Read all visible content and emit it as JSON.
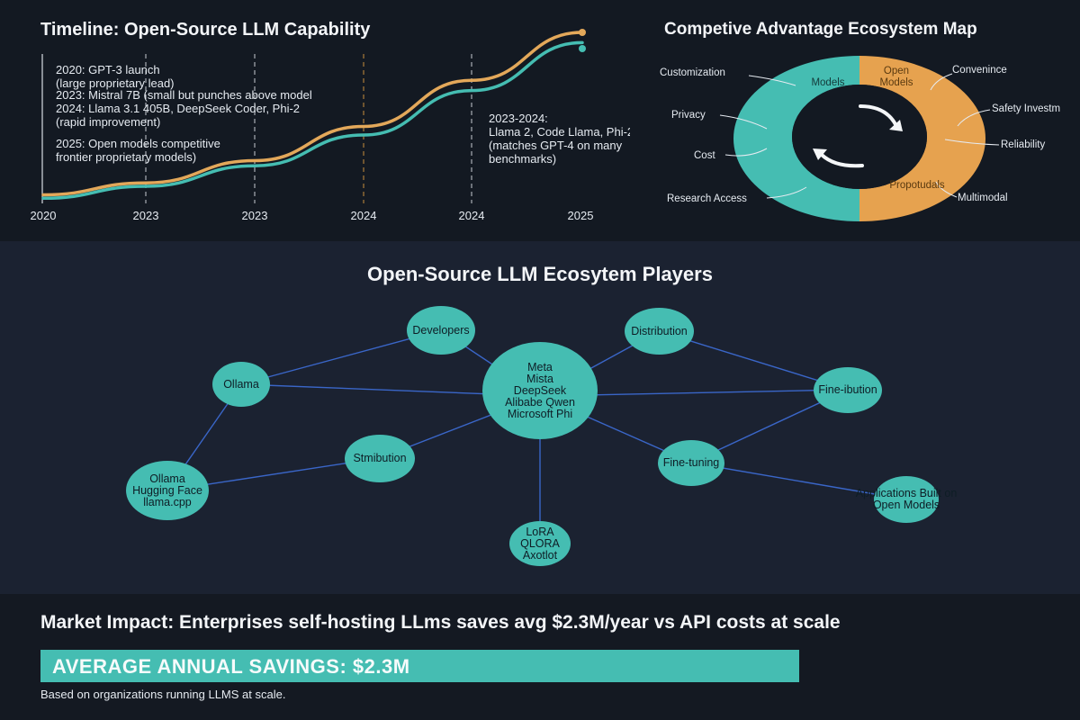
{
  "timeline": {
    "title": "Timeline: Open-Source LLM Capability",
    "notes": [
      "2020: GPT-3 launch\n(large proprietary lead)",
      "2023: Mistral 7B (small but punches above model\n2024: Llama 3.1 405B, DeepSeek Coder, Phi-2\n(rapid improvement)",
      "2025: Open models competitive\nfrontier proprietary models)",
      "2023-2024:\nLlama 2, Code Llama, Phi-2\n(matches GPT-4 on many\nbenchmarks)"
    ],
    "ticks": [
      "2020",
      "2023",
      "2023",
      "2024",
      "2024",
      "2025"
    ],
    "colors": {
      "proprietary": "#e3a85a",
      "open": "#45bdb2",
      "dashed": "#c7cbd2",
      "dashed_orange": "#c98f3c"
    }
  },
  "chart_data": {
    "type": "line",
    "title": "Timeline: Open-Source LLM Capability",
    "categories": [
      "2020",
      "2023",
      "2023",
      "2024",
      "2024",
      "2025"
    ],
    "series": [
      {
        "values": [
          5,
          12,
          25,
          45,
          72,
          100
        ]
      },
      {
        "values": [
          3,
          10,
          22,
          40,
          66,
          94
        ]
      }
    ]
  },
  "ecosystem_map": {
    "title": "Competive Advantage Ecosystem Map",
    "left_labels": [
      "Customization",
      "Privacy",
      "Cost",
      "Research Access"
    ],
    "right_labels": [
      "Convenince",
      "Safety Investm",
      "Reliability",
      "Multimodal"
    ],
    "ring_labels": {
      "teal": "Models",
      "orange_top": "Open\nModels",
      "orange_bottom": "Propotudals"
    },
    "colors": {
      "teal": "#45bdb2",
      "orange": "#e6a24f"
    }
  },
  "players": {
    "title": "Open-Source LLM Ecosytem Players",
    "nodes": [
      {
        "id": "center",
        "label": "Meta\nMista\nDeepSeek\nAlibabe Qwen\nMicrosoft Phi"
      },
      {
        "id": "developers",
        "label": "Developers"
      },
      {
        "id": "distribution",
        "label": "Distribution"
      },
      {
        "id": "ollama",
        "label": "Ollama"
      },
      {
        "id": "fine-ibution",
        "label": "Fine-ibution"
      },
      {
        "id": "stmibution",
        "label": "Stmibution"
      },
      {
        "id": "fine-tuning",
        "label": "Fine-tuning"
      },
      {
        "id": "ollama-hf",
        "label": "Ollama\nHugging Face\nllama.cpp"
      },
      {
        "id": "apps",
        "label": "Applications Built on\nOpen Models"
      },
      {
        "id": "lora",
        "label": "LoRA\nQLORA\nAxotlot"
      }
    ],
    "colors": {
      "node": "#45bdb2",
      "edge": "#3a66c8"
    }
  },
  "impact": {
    "title": "Market Impact: Enterprises self-hosting LLms saves avg $2.3M/year vs API costs at scale",
    "banner": "AVERAGE ANNUAL SAVINGS: $2.3M",
    "footnote": "Based on organizations running LLMS at scale."
  }
}
